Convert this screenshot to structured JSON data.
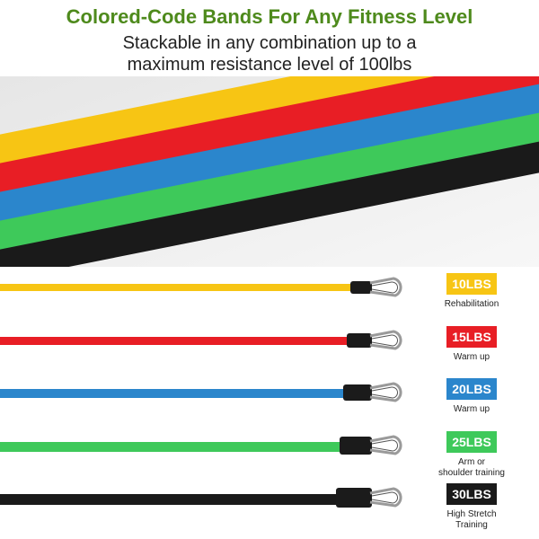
{
  "heading": {
    "title": "Colored-Code Bands For Any Fitness Level",
    "subtitle_line1": "Stackable in any combination up to a",
    "subtitle_line2": "maximum resistance level of 100lbs"
  },
  "bands": [
    {
      "label": "10LBS",
      "desc1": "Rehabilitation",
      "desc2": "",
      "color": "#f7c514"
    },
    {
      "label": "15LBS",
      "desc1": "Warm up",
      "desc2": "",
      "color": "#e81e25"
    },
    {
      "label": "20LBS",
      "desc1": "Warm up",
      "desc2": "",
      "color": "#2b86cc"
    },
    {
      "label": "25LBS",
      "desc1": "Arm or",
      "desc2": "shoulder training",
      "color": "#3ec95a"
    },
    {
      "label": "30LBS",
      "desc1": "High Stretch",
      "desc2": "Training",
      "color": "#1a1a1a"
    }
  ]
}
